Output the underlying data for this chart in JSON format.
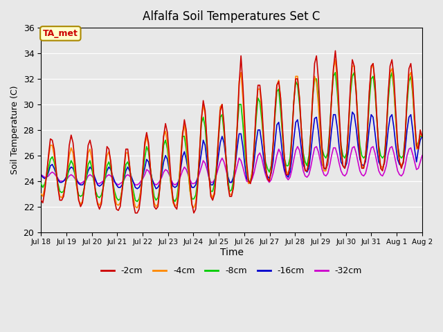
{
  "title": "Alfalfa Soil Temperatures Set C",
  "xlabel": "Time",
  "ylabel": "Soil Temperature (C)",
  "ylim": [
    20,
    36
  ],
  "yticks": [
    20,
    22,
    24,
    26,
    28,
    30,
    32,
    34,
    36
  ],
  "legend_entries": [
    "-2cm",
    "-4cm",
    "-8cm",
    "-16cm",
    "-32cm"
  ],
  "legend_colors": [
    "#cc0000",
    "#ff8800",
    "#00cc00",
    "#0000cc",
    "#cc00cc"
  ],
  "annotation_text": "TA_met",
  "annotation_bg": "#ffffcc",
  "annotation_border": "#aa8800",
  "x_tick_labels": [
    "Jul 18",
    "Jul 19",
    "Jul 20",
    "Jul 21",
    "Jul 22",
    "Jul 23",
    "Jul 24",
    "Jul 25",
    "Jul 26",
    "Jul 27",
    "Jul 28",
    "Jul 29",
    "Jul 30",
    "Jul 31",
    "Aug 1",
    "Aug 2"
  ],
  "num_days": 15,
  "series": {
    "cm2": [
      22.5,
      22.3,
      23.2,
      24.5,
      26.0,
      27.3,
      27.2,
      26.5,
      25.0,
      23.5,
      22.5,
      22.5,
      22.8,
      23.8,
      25.0,
      26.8,
      27.6,
      27.0,
      25.5,
      23.8,
      22.5,
      22.0,
      22.3,
      23.5,
      25.2,
      26.8,
      27.2,
      26.5,
      24.5,
      23.0,
      22.2,
      21.8,
      22.2,
      23.5,
      25.3,
      26.7,
      26.5,
      25.5,
      23.8,
      22.5,
      21.8,
      21.7,
      22.0,
      23.2,
      25.0,
      26.5,
      26.5,
      25.2,
      23.5,
      22.2,
      21.5,
      21.5,
      21.8,
      23.0,
      25.0,
      27.0,
      27.8,
      27.0,
      25.0,
      23.2,
      22.0,
      21.8,
      22.0,
      23.5,
      25.5,
      27.5,
      28.5,
      27.8,
      26.0,
      24.0,
      22.5,
      22.0,
      21.8,
      23.0,
      25.2,
      27.5,
      28.8,
      28.0,
      26.0,
      23.8,
      22.2,
      21.5,
      21.8,
      23.5,
      26.0,
      28.8,
      30.3,
      29.5,
      27.0,
      24.5,
      22.8,
      22.5,
      23.0,
      24.8,
      27.2,
      29.5,
      30.0,
      28.5,
      26.0,
      23.8,
      22.8,
      22.8,
      23.5,
      25.5,
      28.2,
      31.5,
      33.8,
      31.5,
      28.5,
      25.5,
      24.0,
      23.8,
      24.5,
      26.8,
      29.5,
      31.5,
      31.5,
      30.0,
      27.5,
      25.2,
      24.2,
      24.0,
      24.8,
      26.8,
      29.5,
      31.5,
      31.8,
      30.5,
      28.2,
      25.8,
      24.5,
      24.5,
      25.2,
      27.5,
      30.2,
      32.0,
      32.0,
      30.5,
      28.0,
      25.8,
      24.8,
      24.8,
      25.5,
      27.8,
      30.5,
      33.2,
      33.8,
      32.0,
      29.0,
      26.5,
      25.0,
      25.0,
      25.8,
      27.8,
      30.5,
      32.8,
      34.2,
      32.5,
      29.5,
      26.8,
      25.2,
      25.0,
      26.0,
      28.5,
      31.5,
      33.5,
      33.0,
      31.0,
      28.2,
      26.0,
      25.0,
      25.0,
      25.8,
      28.0,
      31.0,
      33.0,
      33.2,
      31.8,
      29.0,
      26.5,
      25.0,
      24.8,
      25.5,
      27.8,
      30.8,
      33.0,
      33.5,
      32.2,
      29.5,
      27.0,
      25.5,
      25.0,
      25.5,
      27.5,
      30.5,
      32.8,
      33.2,
      31.8,
      29.0,
      26.8,
      26.5,
      28.0,
      27.5
    ],
    "cm4": [
      23.0,
      22.8,
      23.5,
      24.6,
      25.8,
      26.8,
      26.8,
      26.0,
      24.8,
      23.5,
      22.8,
      22.7,
      23.0,
      23.8,
      24.8,
      26.0,
      26.6,
      26.2,
      24.8,
      23.5,
      22.5,
      22.2,
      22.4,
      23.5,
      24.8,
      26.2,
      26.5,
      25.7,
      24.2,
      23.0,
      22.3,
      22.1,
      22.4,
      23.5,
      24.8,
      26.0,
      26.3,
      25.5,
      24.0,
      22.9,
      22.2,
      22.1,
      22.3,
      23.4,
      24.9,
      26.2,
      26.2,
      25.2,
      23.8,
      22.7,
      22.0,
      21.9,
      22.2,
      23.5,
      25.0,
      26.7,
      27.5,
      26.8,
      25.0,
      23.5,
      22.3,
      22.0,
      22.2,
      23.5,
      25.5,
      27.5,
      27.9,
      27.0,
      25.2,
      23.5,
      22.3,
      22.0,
      22.2,
      23.5,
      25.8,
      27.8,
      28.4,
      27.2,
      25.0,
      23.2,
      22.1,
      21.9,
      22.3,
      23.8,
      26.2,
      28.8,
      30.0,
      29.2,
      27.0,
      24.5,
      23.0,
      22.7,
      23.2,
      25.0,
      27.5,
      29.8,
      30.0,
      28.2,
      25.8,
      23.8,
      23.0,
      22.9,
      23.5,
      25.5,
      28.5,
      31.8,
      32.5,
      30.5,
      27.5,
      25.0,
      23.8,
      23.9,
      24.8,
      26.8,
      29.5,
      31.2,
      31.2,
      29.5,
      27.0,
      25.0,
      24.2,
      24.0,
      24.8,
      26.8,
      29.5,
      31.5,
      31.9,
      30.5,
      27.8,
      25.8,
      24.8,
      24.5,
      25.2,
      27.5,
      30.2,
      32.2,
      32.2,
      30.5,
      28.0,
      25.8,
      24.8,
      24.8,
      25.5,
      27.8,
      30.8,
      32.2,
      31.7,
      30.0,
      27.5,
      25.5,
      24.8,
      24.8,
      25.5,
      27.5,
      30.5,
      32.8,
      33.5,
      31.8,
      28.8,
      26.2,
      25.2,
      25.0,
      25.8,
      28.2,
      31.2,
      33.0,
      33.0,
      31.2,
      28.5,
      26.2,
      25.2,
      25.0,
      25.8,
      28.0,
      31.0,
      32.8,
      33.2,
      31.5,
      28.8,
      26.2,
      25.2,
      25.0,
      25.5,
      27.8,
      30.8,
      32.5,
      32.8,
      31.5,
      29.0,
      26.5,
      25.5,
      25.2,
      25.5,
      27.5,
      30.5,
      32.2,
      32.5,
      31.0,
      28.5,
      26.5,
      27.0,
      27.8,
      27.5
    ],
    "cm8": [
      23.8,
      23.5,
      23.8,
      24.3,
      25.0,
      25.7,
      25.9,
      25.5,
      24.7,
      23.8,
      23.2,
      23.1,
      23.2,
      23.8,
      24.3,
      25.2,
      25.6,
      25.3,
      24.5,
      23.5,
      22.9,
      22.8,
      22.9,
      23.5,
      24.2,
      25.3,
      25.6,
      25.0,
      24.0,
      23.2,
      22.8,
      22.7,
      22.9,
      23.5,
      24.2,
      25.2,
      25.5,
      25.0,
      24.0,
      23.2,
      22.7,
      22.5,
      22.6,
      23.3,
      24.2,
      25.3,
      25.5,
      25.0,
      24.0,
      23.2,
      22.5,
      22.4,
      22.6,
      23.3,
      24.5,
      25.8,
      26.7,
      26.3,
      25.0,
      23.8,
      22.8,
      22.5,
      22.7,
      23.5,
      25.0,
      26.8,
      27.2,
      26.5,
      25.0,
      23.5,
      22.6,
      22.4,
      22.7,
      23.8,
      25.5,
      27.5,
      27.5,
      26.5,
      24.8,
      23.2,
      22.6,
      22.6,
      22.9,
      24.0,
      26.0,
      28.5,
      29.0,
      28.2,
      26.5,
      24.5,
      23.2,
      23.2,
      23.8,
      25.2,
      27.2,
      29.0,
      29.2,
      27.8,
      26.0,
      24.2,
      23.2,
      23.3,
      24.0,
      25.8,
      28.2,
      30.0,
      30.0,
      28.5,
      26.5,
      24.8,
      24.0,
      24.0,
      24.8,
      26.5,
      28.8,
      30.5,
      30.2,
      28.8,
      27.0,
      25.5,
      25.0,
      24.7,
      25.2,
      26.8,
      29.0,
      31.0,
      31.2,
      29.5,
      27.5,
      25.8,
      25.2,
      25.2,
      25.8,
      27.8,
      30.2,
      31.8,
      31.5,
      30.0,
      28.0,
      26.2,
      25.5,
      25.2,
      26.0,
      27.8,
      30.5,
      32.0,
      32.0,
      30.5,
      28.2,
      26.5,
      26.0,
      25.8,
      26.2,
      28.0,
      30.5,
      32.2,
      32.5,
      31.0,
      28.8,
      26.8,
      26.0,
      25.8,
      26.2,
      28.2,
      30.8,
      32.2,
      32.5,
      31.0,
      28.8,
      26.8,
      26.0,
      25.8,
      26.0,
      27.8,
      30.2,
      32.0,
      32.2,
      31.0,
      28.8,
      26.8,
      26.0,
      25.8,
      26.0,
      27.8,
      30.2,
      32.0,
      32.5,
      31.2,
      28.8,
      26.8,
      26.0,
      25.8,
      26.0,
      27.5,
      30.0,
      31.8,
      32.2,
      30.8,
      28.5,
      26.8,
      27.0,
      27.5,
      27.5
    ],
    "cm16": [
      24.5,
      24.3,
      24.2,
      24.3,
      24.7,
      25.2,
      25.3,
      25.0,
      24.6,
      24.1,
      23.9,
      23.9,
      24.0,
      24.2,
      24.5,
      24.9,
      25.1,
      25.0,
      24.6,
      24.1,
      23.8,
      23.7,
      23.7,
      23.9,
      24.3,
      24.8,
      25.1,
      24.9,
      24.5,
      24.1,
      23.7,
      23.6,
      23.7,
      23.9,
      24.3,
      24.8,
      25.1,
      24.9,
      24.4,
      24.0,
      23.7,
      23.5,
      23.5,
      23.7,
      24.2,
      24.8,
      25.1,
      24.8,
      24.3,
      23.9,
      23.5,
      23.4,
      23.5,
      23.8,
      24.4,
      25.0,
      25.7,
      25.5,
      24.8,
      24.1,
      23.7,
      23.4,
      23.5,
      23.8,
      24.6,
      25.5,
      26.0,
      25.7,
      24.8,
      24.0,
      23.6,
      23.5,
      23.6,
      24.0,
      24.9,
      25.9,
      26.3,
      25.7,
      24.8,
      23.9,
      23.5,
      23.5,
      23.7,
      24.2,
      25.2,
      26.2,
      27.2,
      26.8,
      25.5,
      24.3,
      23.7,
      23.7,
      24.0,
      24.7,
      25.9,
      27.0,
      27.5,
      27.0,
      25.8,
      24.4,
      23.9,
      23.9,
      24.3,
      25.3,
      26.6,
      27.7,
      27.7,
      26.7,
      25.3,
      24.2,
      24.0,
      24.0,
      24.5,
      25.6,
      27.0,
      28.0,
      28.0,
      27.0,
      25.8,
      24.7,
      24.4,
      24.2,
      24.6,
      25.5,
      27.0,
      28.4,
      28.6,
      27.5,
      26.1,
      24.9,
      24.5,
      24.3,
      24.7,
      25.8,
      27.3,
      28.6,
      28.8,
      27.8,
      26.5,
      25.3,
      24.9,
      24.7,
      25.0,
      26.2,
      27.7,
      28.9,
      29.0,
      27.9,
      26.4,
      25.3,
      25.0,
      24.9,
      25.3,
      26.5,
      28.0,
      29.2,
      29.2,
      28.2,
      26.7,
      25.5,
      25.2,
      25.0,
      25.4,
      26.5,
      28.2,
      29.4,
      29.2,
      28.2,
      26.8,
      25.7,
      25.3,
      25.2,
      25.5,
      26.7,
      28.2,
      29.2,
      29.0,
      27.8,
      26.5,
      25.5,
      25.2,
      25.0,
      25.4,
      26.5,
      28.0,
      29.0,
      29.2,
      28.2,
      26.8,
      25.7,
      25.3,
      25.2,
      25.4,
      26.5,
      28.0,
      29.0,
      29.2,
      28.0,
      26.5,
      25.5,
      26.5,
      27.2,
      27.5
    ],
    "cm32": [
      24.5,
      24.4,
      24.3,
      24.3,
      24.4,
      24.6,
      24.7,
      24.6,
      24.4,
      24.2,
      24.0,
      24.0,
      24.0,
      24.1,
      24.2,
      24.4,
      24.5,
      24.4,
      24.2,
      24.0,
      23.9,
      23.8,
      23.9,
      24.0,
      24.1,
      24.4,
      24.5,
      24.4,
      24.2,
      24.0,
      23.8,
      23.8,
      23.9,
      24.0,
      24.2,
      24.4,
      24.5,
      24.4,
      24.2,
      23.9,
      23.8,
      23.7,
      23.8,
      23.9,
      24.1,
      24.4,
      24.5,
      24.4,
      24.2,
      23.9,
      23.7,
      23.7,
      23.8,
      24.0,
      24.2,
      24.5,
      24.9,
      24.8,
      24.5,
      24.1,
      23.8,
      23.7,
      23.8,
      24.0,
      24.3,
      24.7,
      24.9,
      24.8,
      24.5,
      24.1,
      23.8,
      23.7,
      23.8,
      24.0,
      24.4,
      24.8,
      25.1,
      24.9,
      24.5,
      24.1,
      23.8,
      23.8,
      23.9,
      24.2,
      24.6,
      25.1,
      25.6,
      25.4,
      24.9,
      24.3,
      23.9,
      23.9,
      24.1,
      24.5,
      25.0,
      25.5,
      25.8,
      25.5,
      24.9,
      24.3,
      23.9,
      23.9,
      24.1,
      24.6,
      25.2,
      25.8,
      25.6,
      25.1,
      24.5,
      24.0,
      23.9,
      23.9,
      24.2,
      24.7,
      25.4,
      26.0,
      26.2,
      25.8,
      25.1,
      24.5,
      24.1,
      23.9,
      24.1,
      24.6,
      25.3,
      26.0,
      26.5,
      26.2,
      25.5,
      24.8,
      24.3,
      24.1,
      24.3,
      24.9,
      25.7,
      26.4,
      26.7,
      26.4,
      25.6,
      24.8,
      24.4,
      24.3,
      24.5,
      25.1,
      25.9,
      26.6,
      26.7,
      26.3,
      25.6,
      24.9,
      24.5,
      24.4,
      24.6,
      25.2,
      26.0,
      26.6,
      26.6,
      26.1,
      25.4,
      24.8,
      24.5,
      24.4,
      24.6,
      25.2,
      26.0,
      26.6,
      26.7,
      26.2,
      25.5,
      24.8,
      24.5,
      24.4,
      24.6,
      25.2,
      26.0,
      26.6,
      26.7,
      26.2,
      25.5,
      24.8,
      24.5,
      24.4,
      24.7,
      25.2,
      26.1,
      26.6,
      26.7,
      26.2,
      25.5,
      24.8,
      24.5,
      24.4,
      24.6,
      25.2,
      26.0,
      26.5,
      26.6,
      26.1,
      25.5,
      24.9,
      25.0,
      25.5,
      26.0
    ]
  }
}
